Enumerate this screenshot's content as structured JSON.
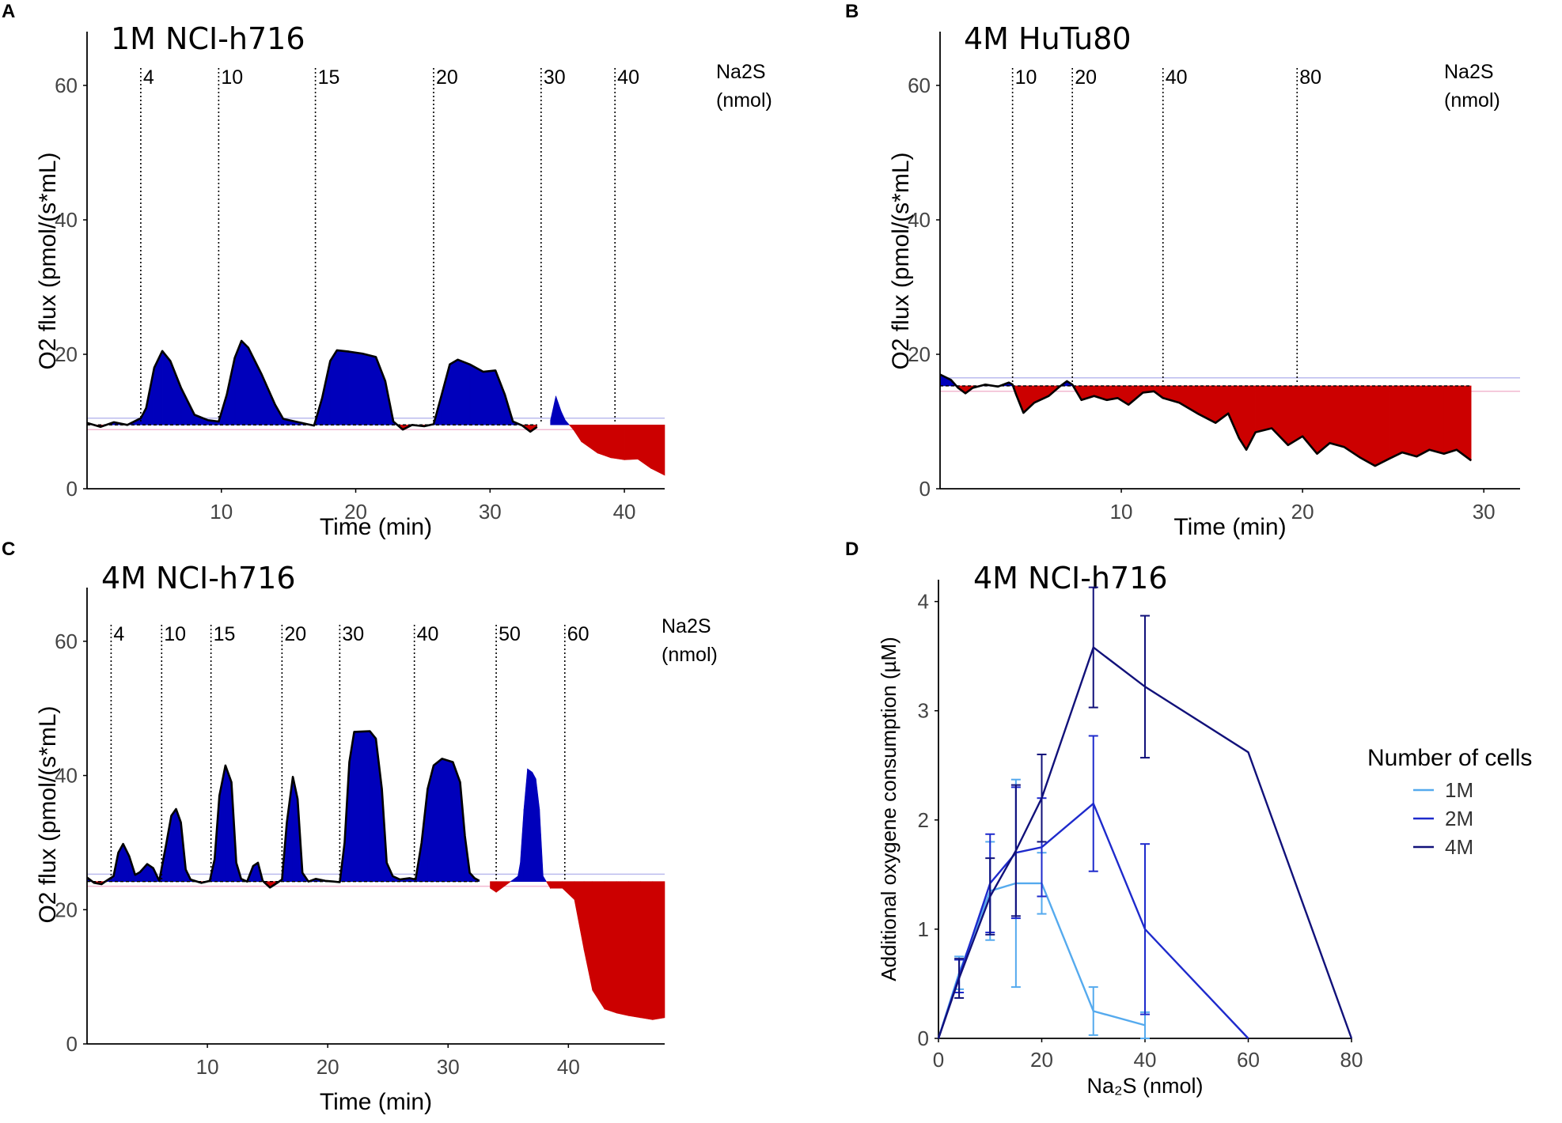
{
  "colors": {
    "positive_fill": "#0000BB",
    "negative_fill": "#CC0000",
    "trace": "#000000",
    "baseline_pink": "#F2B8D0",
    "baseline_lav": "#BBBBEE",
    "axis": "#000000"
  },
  "chart_data": [
    {
      "id": "A",
      "type": "area",
      "panel_letter": "A",
      "title": "1M NCI-h716",
      "xlabel": "Time (min)",
      "ylabel": "O2 flux (pmol/(s*mL)",
      "xlim": [
        0,
        43
      ],
      "ylim": [
        0,
        68
      ],
      "xticks": [
        10,
        20,
        30,
        40
      ],
      "yticks": [
        0,
        20,
        40,
        60
      ],
      "xtick_labels": [
        "10",
        "20",
        "30",
        "40"
      ],
      "ytick_labels": [
        "0",
        "20",
        "40",
        "60"
      ],
      "baseline": 9.5,
      "upper_ref": 10.5,
      "lower_ref": 8.8,
      "trace_end": 33.5,
      "na2s_label": [
        "Na2S",
        "(nmol)"
      ],
      "injections": [
        {
          "time": 4.0,
          "label": "4"
        },
        {
          "time": 9.8,
          "label": "10"
        },
        {
          "time": 17.0,
          "label": "15"
        },
        {
          "time": 25.8,
          "label": "20"
        },
        {
          "time": 33.8,
          "label": "30"
        },
        {
          "time": 39.3,
          "label": "40"
        }
      ],
      "trace": [
        [
          0,
          9.8
        ],
        [
          1,
          9.2
        ],
        [
          2,
          9.9
        ],
        [
          3,
          9.5
        ],
        [
          4,
          10.5
        ],
        [
          4.4,
          12
        ],
        [
          5,
          18
        ],
        [
          5.6,
          20.5
        ],
        [
          6.2,
          19
        ],
        [
          7,
          15
        ],
        [
          8,
          11
        ],
        [
          9,
          10.2
        ],
        [
          9.8,
          10
        ],
        [
          10.4,
          14
        ],
        [
          11,
          19.5
        ],
        [
          11.5,
          22
        ],
        [
          12,
          21
        ],
        [
          13,
          17
        ],
        [
          14,
          12.5
        ],
        [
          14.6,
          10.4
        ],
        [
          15.5,
          10
        ],
        [
          16.4,
          9.6
        ],
        [
          16.9,
          9.4
        ],
        [
          17.5,
          13.5
        ],
        [
          18.1,
          19
        ],
        [
          18.6,
          20.6
        ],
        [
          19.5,
          20.4
        ],
        [
          20.5,
          20.1
        ],
        [
          21.5,
          19.6
        ],
        [
          22.2,
          16
        ],
        [
          22.8,
          10
        ],
        [
          23.5,
          8.8
        ],
        [
          24.2,
          9.5
        ],
        [
          25.1,
          9.3
        ],
        [
          25.8,
          9.6
        ],
        [
          26.4,
          14
        ],
        [
          27,
          18.5
        ],
        [
          27.6,
          19.2
        ],
        [
          28.5,
          18.5
        ],
        [
          29.5,
          17.4
        ],
        [
          30.4,
          17.6
        ],
        [
          31.1,
          14
        ],
        [
          31.7,
          10
        ],
        [
          32.4,
          9.4
        ],
        [
          33,
          8.5
        ],
        [
          33.5,
          9.2
        ]
      ],
      "post_trace": [
        [
          34.5,
          10.2
        ],
        [
          34.9,
          13.8
        ],
        [
          35.3,
          11.5
        ],
        [
          35.6,
          10.2
        ],
        [
          36.2,
          8.8
        ],
        [
          36.8,
          7
        ],
        [
          38,
          5.3
        ],
        [
          39,
          4.6
        ],
        [
          40,
          4.3
        ],
        [
          41,
          4.4
        ],
        [
          42,
          3
        ],
        [
          43,
          2
        ]
      ]
    },
    {
      "id": "B",
      "type": "area",
      "panel_letter": "B",
      "title": "4M HuTu80",
      "xlabel": "Time (min)",
      "ylabel": "O2 flux (pmol/(s*mL)",
      "xlim": [
        0,
        32
      ],
      "ylim": [
        0,
        68
      ],
      "xticks": [
        10,
        20,
        30
      ],
      "yticks": [
        0,
        20,
        40,
        60
      ],
      "xtick_labels": [
        "10",
        "20",
        "30"
      ],
      "ytick_labels": [
        "0",
        "20",
        "40",
        "60"
      ],
      "baseline": 15.3,
      "upper_ref": 16.5,
      "lower_ref": 14.5,
      "trace_end": 29.3,
      "na2s_label": [
        "Na2S",
        "(nmol)"
      ],
      "injections": [
        {
          "time": 4.0,
          "label": "10"
        },
        {
          "time": 7.3,
          "label": "20"
        },
        {
          "time": 12.3,
          "label": "40"
        },
        {
          "time": 19.7,
          "label": "80"
        }
      ],
      "trace": [
        [
          0,
          17
        ],
        [
          0.6,
          16.2
        ],
        [
          1,
          15
        ],
        [
          1.4,
          14.2
        ],
        [
          1.8,
          15
        ],
        [
          2.5,
          15.5
        ],
        [
          3.2,
          15.2
        ],
        [
          3.8,
          15.8
        ],
        [
          4,
          15.5
        ],
        [
          4.2,
          14
        ],
        [
          4.6,
          11.3
        ],
        [
          5.2,
          12.8
        ],
        [
          6,
          13.8
        ],
        [
          6.6,
          15.2
        ],
        [
          7,
          16
        ],
        [
          7.3,
          15.5
        ],
        [
          7.8,
          13.2
        ],
        [
          8.5,
          13.8
        ],
        [
          9.2,
          13.2
        ],
        [
          9.8,
          13.5
        ],
        [
          10.4,
          12.5
        ],
        [
          11.2,
          14.3
        ],
        [
          11.8,
          14.5
        ],
        [
          12.3,
          13.5
        ],
        [
          13.2,
          12.8
        ],
        [
          14.2,
          11.2
        ],
        [
          15.2,
          9.8
        ],
        [
          15.9,
          11.2
        ],
        [
          16.5,
          7.5
        ],
        [
          16.9,
          5.8
        ],
        [
          17.4,
          8.4
        ],
        [
          18.3,
          9
        ],
        [
          19.2,
          6.5
        ],
        [
          20,
          7.8
        ],
        [
          20.8,
          5.2
        ],
        [
          21.5,
          6.8
        ],
        [
          22.3,
          6.2
        ],
        [
          23.2,
          4.6
        ],
        [
          24,
          3.4
        ],
        [
          24.8,
          4.5
        ],
        [
          25.5,
          5.4
        ],
        [
          26.3,
          4.8
        ],
        [
          27,
          5.8
        ],
        [
          27.8,
          5.2
        ],
        [
          28.5,
          5.8
        ],
        [
          29.3,
          4.2
        ]
      ]
    },
    {
      "id": "C",
      "type": "area",
      "panel_letter": "C",
      "title": "4M NCI-h716",
      "xlabel": "Time (min)",
      "ylabel": "O2 flux (pmol/(s*mL)",
      "xlim": [
        0,
        48
      ],
      "ylim": [
        0,
        68
      ],
      "xticks": [
        10,
        20,
        30,
        40
      ],
      "yticks": [
        0,
        20,
        40,
        60
      ],
      "xtick_labels": [
        "10",
        "20",
        "30",
        "40"
      ],
      "ytick_labels": [
        "0",
        "20",
        "40",
        "60"
      ],
      "baseline": 24.2,
      "upper_ref": 25.3,
      "lower_ref": 23.5,
      "trace_end": 32.6,
      "na2s_label": [
        "Na2S",
        "(nmol)"
      ],
      "injections": [
        {
          "time": 2.0,
          "label": "4"
        },
        {
          "time": 6.2,
          "label": "10"
        },
        {
          "time": 10.3,
          "label": "15"
        },
        {
          "time": 16.2,
          "label": "20"
        },
        {
          "time": 21.0,
          "label": "30"
        },
        {
          "time": 27.2,
          "label": "40"
        },
        {
          "time": 34.0,
          "label": "50"
        },
        {
          "time": 39.7,
          "label": "60"
        }
      ],
      "trace": [
        [
          0,
          24.8
        ],
        [
          0.6,
          24
        ],
        [
          1.2,
          23.8
        ],
        [
          1.6,
          24.3
        ],
        [
          2.2,
          25
        ],
        [
          2.6,
          28.5
        ],
        [
          3,
          29.8
        ],
        [
          3.5,
          28
        ],
        [
          4,
          25.2
        ],
        [
          4.4,
          25.6
        ],
        [
          5,
          26.8
        ],
        [
          5.5,
          26.2
        ],
        [
          6,
          24.3
        ],
        [
          6.6,
          30
        ],
        [
          7,
          34
        ],
        [
          7.4,
          35
        ],
        [
          7.8,
          33
        ],
        [
          8.2,
          26
        ],
        [
          8.6,
          24.5
        ],
        [
          9.5,
          24
        ],
        [
          10.2,
          24.3
        ],
        [
          10.6,
          27.5
        ],
        [
          11,
          37
        ],
        [
          11.5,
          41.5
        ],
        [
          12,
          39
        ],
        [
          12.4,
          27
        ],
        [
          12.8,
          24.6
        ],
        [
          13.3,
          24.2
        ],
        [
          13.8,
          26.5
        ],
        [
          14.2,
          27
        ],
        [
          14.6,
          24.3
        ],
        [
          15.2,
          23.3
        ],
        [
          15.8,
          24
        ],
        [
          16.2,
          24.5
        ],
        [
          16.6,
          33
        ],
        [
          17.1,
          39.8
        ],
        [
          17.5,
          36.5
        ],
        [
          17.9,
          25.5
        ],
        [
          18.4,
          24.2
        ],
        [
          19,
          24.6
        ],
        [
          19.8,
          24.3
        ],
        [
          20.5,
          24.2
        ],
        [
          21,
          24.1
        ],
        [
          21.4,
          30
        ],
        [
          21.8,
          42
        ],
        [
          22.2,
          46.5
        ],
        [
          23.5,
          46.6
        ],
        [
          24,
          45.5
        ],
        [
          24.5,
          38
        ],
        [
          24.9,
          27
        ],
        [
          25.4,
          25
        ],
        [
          26,
          24.5
        ],
        [
          26.8,
          24.7
        ],
        [
          27.3,
          24.5
        ],
        [
          27.8,
          30
        ],
        [
          28.3,
          38
        ],
        [
          28.8,
          41.5
        ],
        [
          29.5,
          42.5
        ],
        [
          30.4,
          42
        ],
        [
          31,
          39
        ],
        [
          31.4,
          31
        ],
        [
          31.8,
          25.5
        ],
        [
          32.2,
          24.7
        ],
        [
          32.6,
          24.3
        ]
      ],
      "post_trace": [
        [
          33.5,
          23.2
        ],
        [
          34,
          22.6
        ],
        [
          35.8,
          25
        ],
        [
          36,
          27
        ],
        [
          36.3,
          35
        ],
        [
          36.6,
          41
        ],
        [
          37,
          40.5
        ],
        [
          37.3,
          39.5
        ],
        [
          37.6,
          35
        ],
        [
          37.9,
          25
        ],
        [
          38.5,
          23.2
        ],
        [
          39.5,
          23.2
        ],
        [
          40.5,
          21.5
        ],
        [
          41.3,
          14
        ],
        [
          42,
          8
        ],
        [
          43,
          5.2
        ],
        [
          44,
          4.6
        ],
        [
          45,
          4.2
        ],
        [
          46,
          3.9
        ],
        [
          47,
          3.6
        ],
        [
          48,
          3.9
        ]
      ]
    },
    {
      "id": "D",
      "type": "line",
      "panel_letter": "D",
      "title": "4M NCI-h716",
      "xlabel": "Na₂S (nmol)",
      "ylabel": "Additional oxygene consumption (µM)",
      "xlim": [
        0,
        80
      ],
      "ylim": [
        0,
        4.2
      ],
      "xticks": [
        0,
        20,
        40,
        60,
        80
      ],
      "yticks": [
        0,
        1,
        2,
        3,
        4
      ],
      "xtick_labels": [
        "0",
        "20",
        "40",
        "60",
        "80"
      ],
      "ytick_labels": [
        "0",
        "1",
        "2",
        "3",
        "4"
      ],
      "legend_title": "Number of cells",
      "series": [
        {
          "name": "1M",
          "color": "#55AAEE",
          "points": [
            [
              0,
              0
            ],
            [
              4,
              0.6
            ],
            [
              10,
              1.35
            ],
            [
              15,
              1.42
            ],
            [
              20,
              1.42
            ],
            [
              30,
              0.25
            ],
            [
              40,
              0.12
            ]
          ],
          "err": [
            0.15,
            0.45,
            0.95,
            0.28,
            0.22,
            0.12
          ]
        },
        {
          "name": "2M",
          "color": "#1E2ACC",
          "points": [
            [
              0,
              0
            ],
            [
              4,
              0.57
            ],
            [
              10,
              1.42
            ],
            [
              15,
              1.7
            ],
            [
              20,
              1.75
            ],
            [
              30,
              2.15
            ],
            [
              40,
              1.0
            ],
            [
              60,
              0
            ]
          ],
          "err": [
            0.15,
            0.45,
            0.6,
            0.45,
            0.62,
            0.78,
            null
          ]
        },
        {
          "name": "4M",
          "color": "#11117A",
          "points": [
            [
              0,
              0
            ],
            [
              4,
              0.55
            ],
            [
              10,
              1.3
            ],
            [
              15,
              1.72
            ],
            [
              20,
              2.2
            ],
            [
              30,
              3.58
            ],
            [
              40,
              3.22
            ],
            [
              60,
              2.62
            ],
            [
              80,
              0
            ]
          ],
          "err": [
            0.18,
            0.35,
            0.6,
            0.4,
            0.55,
            0.65,
            null,
            null
          ]
        }
      ]
    }
  ]
}
